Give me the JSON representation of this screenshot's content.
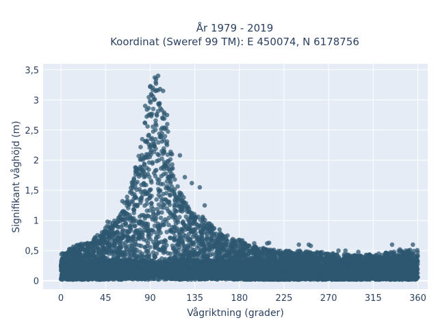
{
  "chart_data": {
    "type": "scatter",
    "title": "År 1979 - 2019",
    "subtitle": "Koordinat (Sweref 99 TM): E 450074, N 6178756",
    "xlabel": "Vågriktning (grader)",
    "ylabel": "Signifikant våghöjd (m)",
    "xlim": [
      -18,
      370
    ],
    "ylim": [
      -0.14,
      3.6
    ],
    "x_ticks": [
      0,
      45,
      90,
      135,
      180,
      225,
      270,
      315,
      360
    ],
    "x_tick_labels": [
      "0",
      "45",
      "90",
      "135",
      "180",
      "225",
      "270",
      "315",
      "360"
    ],
    "y_ticks": [
      0,
      0.5,
      1,
      1.5,
      2,
      2.5,
      3,
      3.5
    ],
    "y_tick_labels": [
      "0",
      "0,5",
      "1",
      "1,5",
      "2",
      "2,5",
      "3",
      "3,5"
    ],
    "grid": true,
    "legend": "none",
    "marker_color": "#2e5770",
    "series": [
      {
        "x": [
          0,
          10,
          20,
          30,
          40,
          50,
          60,
          70,
          80,
          85,
          88,
          90,
          92,
          95,
          98,
          100,
          105,
          110,
          115,
          120,
          125,
          130,
          140,
          150,
          160,
          170,
          180,
          190,
          200,
          220,
          240,
          260,
          280,
          300,
          320,
          340,
          360
        ],
        "y_max": [
          0.45,
          0.55,
          0.62,
          0.66,
          0.83,
          0.98,
          1.1,
          1.55,
          2.2,
          2.8,
          3.05,
          3.25,
          3.3,
          3.4,
          3.15,
          3.0,
          2.8,
          2.35,
          1.75,
          1.5,
          1.35,
          1.2,
          1.1,
          0.98,
          0.8,
          0.7,
          0.68,
          0.58,
          0.56,
          0.5,
          0.5,
          0.48,
          0.45,
          0.42,
          0.45,
          0.5,
          0.52
        ],
        "y_min": [
          0.02,
          0.02,
          0.02,
          0.02,
          0.02,
          0.02,
          0.02,
          0.03,
          0.03,
          0.03,
          0.03,
          0.03,
          0.03,
          0.03,
          0.03,
          0.03,
          0.03,
          0.03,
          0.03,
          0.03,
          0.03,
          0.03,
          0.03,
          0.03,
          0.03,
          0.03,
          0.02,
          0.02,
          0.02,
          0.02,
          0.02,
          0.02,
          0.02,
          0.02,
          0.02,
          0.02,
          0.02
        ],
        "outliers": [
          [
            98,
            3.4
          ],
          [
            96,
            3.35
          ],
          [
            100,
            3.18
          ],
          [
            103,
            3.15
          ],
          [
            85,
            2.9
          ],
          [
            107,
            2.75
          ],
          [
            120,
            2.08
          ],
          [
            112,
            2.1
          ],
          [
            125,
            1.72
          ],
          [
            132,
            1.62
          ],
          [
            140,
            1.55
          ],
          [
            145,
            1.25
          ],
          [
            152,
            0.9
          ],
          [
            160,
            0.85
          ],
          [
            168,
            0.75
          ],
          [
            180,
            0.68
          ],
          [
            183,
            0.67
          ],
          [
            195,
            0.62
          ],
          [
            208,
            0.62
          ],
          [
            210,
            0.63
          ],
          [
            240,
            0.6
          ],
          [
            250,
            0.6
          ],
          [
            252,
            0.58
          ],
          [
            280,
            0.5
          ],
          [
            287,
            0.5
          ],
          [
            300,
            0.48
          ],
          [
            334,
            0.6
          ],
          [
            336,
            0.48
          ],
          [
            355,
            0.6
          ],
          [
            342,
            0.52
          ],
          [
            25,
            0.6
          ],
          [
            10,
            0.5
          ],
          [
            5,
            0.45
          ],
          [
            33,
            0.65
          ],
          [
            44,
            0.7
          ],
          [
            47,
            0.98
          ],
          [
            55,
            0.92
          ],
          [
            62,
            1.32
          ],
          [
            66,
            1.12
          ],
          [
            72,
            1.58
          ],
          [
            75,
            1.88
          ]
        ]
      }
    ]
  }
}
